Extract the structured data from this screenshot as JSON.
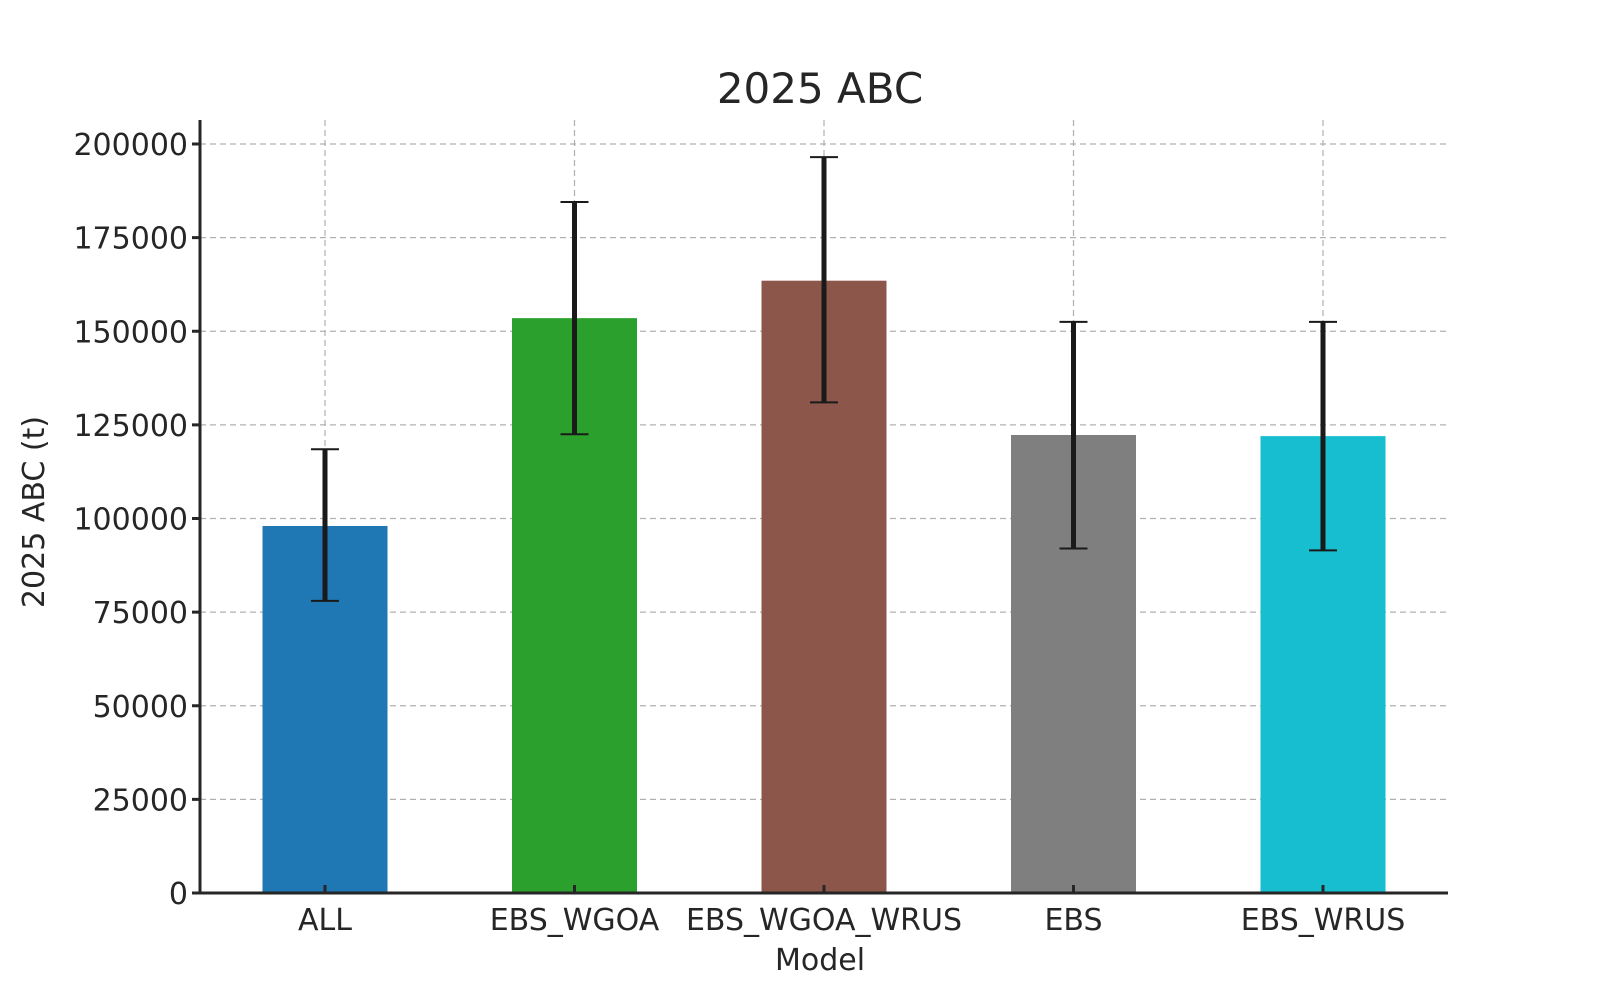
{
  "chart_data": {
    "type": "bar",
    "title": "2025 ABC",
    "xlabel": "Model",
    "ylabel": "2025 ABC (t)",
    "categories": [
      "ALL",
      "EBS_WGOA",
      "EBS_WGOA_WRUS",
      "EBS",
      "EBS_WRUS"
    ],
    "values": [
      98000,
      153500,
      163500,
      122300,
      122000
    ],
    "error_low": [
      78000,
      122500,
      131000,
      92000,
      91500
    ],
    "error_high": [
      118500,
      184500,
      196500,
      152500,
      152500
    ],
    "colors": [
      "#1f77b4",
      "#2ca02c",
      "#8c564b",
      "#7f7f7f",
      "#17becf"
    ],
    "ylim": [
      0,
      200000
    ],
    "yticks": [
      0,
      25000,
      50000,
      75000,
      100000,
      125000,
      150000,
      175000,
      200000
    ],
    "ytick_labels": [
      "0",
      "25000",
      "50000",
      "75000",
      "100000",
      "125000",
      "150000",
      "175000",
      "200000"
    ],
    "grid": true,
    "legend": "none"
  }
}
